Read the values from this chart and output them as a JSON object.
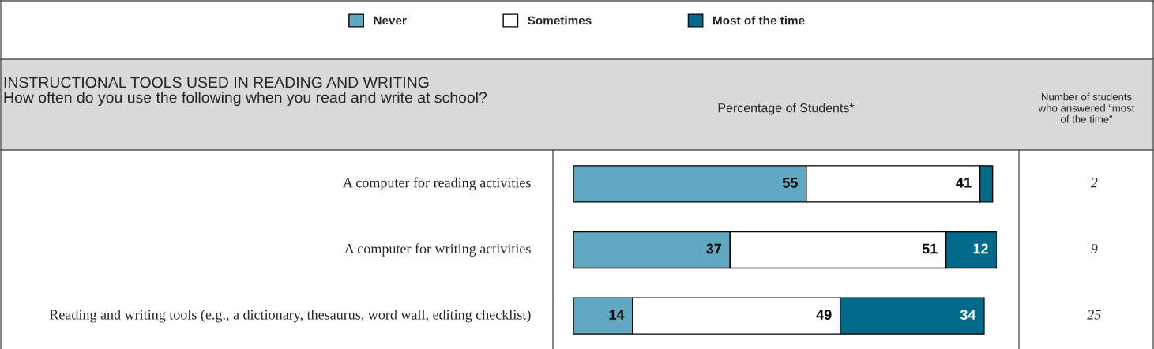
{
  "chart_data": {
    "type": "bar",
    "orientation": "horizontal",
    "stacked": true,
    "title": "INSTRUCTIONAL TOOLS USED IN READING AND WRITING",
    "subtitle": "How often do you use the following when you read and write at school?",
    "xlabel": "Percentage of Students*",
    "categories": [
      "A computer for reading activities",
      "A computer for writing activities",
      "Reading and writing tools (e.g., a dictionary, thesaurus, word wall, editing checklist)"
    ],
    "series": [
      {
        "name": "Never",
        "color": "#5fa8c1",
        "values": [
          55,
          37,
          14
        ],
        "value_labels": [
          "55",
          "37",
          "14"
        ]
      },
      {
        "name": "Sometimes",
        "color": "#ffffff",
        "values": [
          41,
          51,
          49
        ],
        "value_labels": [
          "41",
          "51",
          "49"
        ]
      },
      {
        "name": "Most of the time",
        "color": "#006a8a",
        "values": [
          3,
          12,
          34
        ],
        "value_labels": [
          null,
          "12",
          "34"
        ]
      }
    ],
    "legend": "top",
    "annotations": [
      "Number of students who answered “most of the time”",
      "2",
      "9",
      "25"
    ]
  }
}
